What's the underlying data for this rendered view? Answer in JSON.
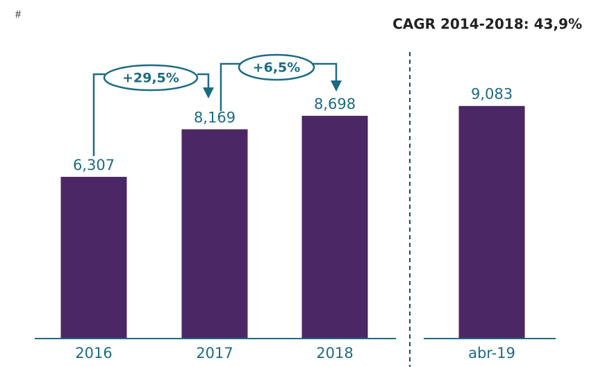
{
  "chart_data": {
    "type": "bar",
    "note": "#",
    "subtitle": "CAGR 2014-2018: 43,9%",
    "categories": [
      "2016",
      "2017",
      "2018",
      "abr-19"
    ],
    "values": [
      6.307,
      8.169,
      8.698,
      9.083
    ],
    "value_labels": [
      "6,307",
      "8,169",
      "8,698",
      "9,083"
    ],
    "color": "#4b2766",
    "growth_labels": [
      "+29,5%",
      "+6,5%"
    ]
  }
}
